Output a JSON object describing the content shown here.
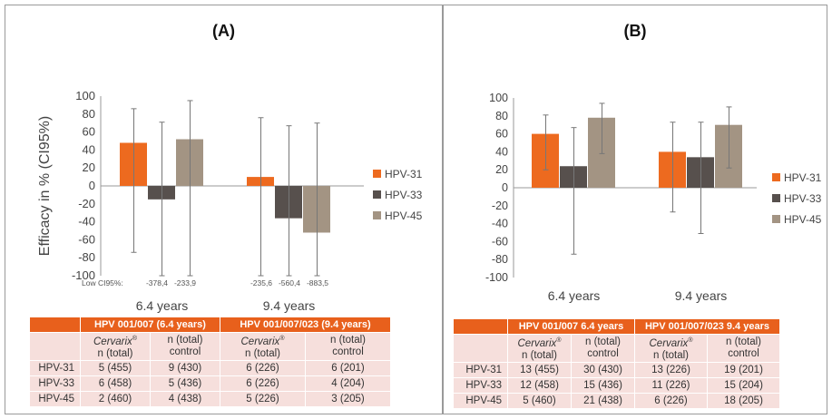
{
  "colors": {
    "hpv31": "#ed6a1f",
    "hpv33": "#57504d",
    "hpv45": "#a39483",
    "header": "#e8601c",
    "cell": "#f6dfdc"
  },
  "panels": [
    {
      "title": "(A)",
      "ylabel": "Efficacy in % (CI95%)",
      "low_ci_label": "Low CI95%:",
      "low_ci_values": [
        "-378,4",
        "-233,9",
        "-235,6",
        "-560,4",
        "-883,5"
      ],
      "table": {
        "group_headers": [
          "HPV 001/007 (6.4 years)",
          "HPV 001/007/023 (9.4 years)"
        ],
        "sub_headers": [
          {
            "main": "Cervarix",
            "sup": "®",
            "second": "n (total)"
          },
          {
            "main": "n (total)",
            "sup": "",
            "second": "control"
          },
          {
            "main": "Cervarix",
            "sup": "®",
            "second": "n (total)"
          },
          {
            "main": "n (total)",
            "sup": "",
            "second": "control"
          }
        ],
        "rows": [
          {
            "label": "HPV-31",
            "cells": [
              "5 (455)",
              "9 (430)",
              "6 (226)",
              "6 (201)"
            ]
          },
          {
            "label": "HPV-33",
            "cells": [
              "6 (458)",
              "5 (436)",
              "6 (226)",
              "4 (204)"
            ]
          },
          {
            "label": "HPV-45",
            "cells": [
              "2 (460)",
              "4 (438)",
              "5 (226)",
              "3 (205)"
            ]
          }
        ]
      }
    },
    {
      "title": "(B)",
      "table": {
        "group_headers": [
          "HPV 001/007 6.4 years",
          "HPV 001/007/023 9.4 years"
        ],
        "sub_headers": [
          {
            "main": "Cervarix",
            "sup": "®",
            "second": "n (total)"
          },
          {
            "main": "n (total)",
            "sup": "",
            "second": "control"
          },
          {
            "main": "Cervarix",
            "sup": "®",
            "second": "n (total)"
          },
          {
            "main": "n (total)",
            "sup": "",
            "second": "control"
          }
        ],
        "rows": [
          {
            "label": "HPV-31",
            "cells": [
              "13 (455)",
              "30 (430)",
              "13 (226)",
              "19 (201)"
            ]
          },
          {
            "label": "HPV-33",
            "cells": [
              "12 (458)",
              "15 (436)",
              "11 (226)",
              "15 (204)"
            ]
          },
          {
            "label": "HPV-45",
            "cells": [
              "5 (460)",
              "21 (438)",
              "6 (226)",
              "18 (205)"
            ]
          }
        ]
      }
    }
  ],
  "chart_data": [
    {
      "type": "bar",
      "title": "(A)",
      "ylabel": "Efficacy in % (CI95%)",
      "ylim": [
        -100,
        100
      ],
      "yticks": [
        -100,
        -80,
        -60,
        -40,
        -20,
        0,
        20,
        40,
        60,
        80,
        100
      ],
      "categories": [
        "6.4 years",
        "9.4 years"
      ],
      "legend_position": "right",
      "series": [
        {
          "name": "HPV-31",
          "values": [
            48,
            10
          ],
          "ci_low": [
            -74,
            -100
          ],
          "ci_high": [
            86,
            76
          ]
        },
        {
          "name": "HPV-33",
          "values": [
            -15,
            -36
          ],
          "ci_low": [
            -100,
            -100
          ],
          "ci_high": [
            71,
            67
          ]
        },
        {
          "name": "HPV-45",
          "values": [
            52,
            -52
          ],
          "ci_low": [
            -100,
            -100
          ],
          "ci_high": [
            95,
            70
          ]
        }
      ]
    },
    {
      "type": "bar",
      "title": "(B)",
      "ylabel": "",
      "ylim": [
        -100,
        100
      ],
      "yticks": [
        -100,
        -80,
        -60,
        -40,
        -20,
        0,
        20,
        40,
        60,
        80,
        100
      ],
      "categories": [
        "6.4 years",
        "9.4 years"
      ],
      "legend_position": "right",
      "series": [
        {
          "name": "HPV-31",
          "values": [
            60,
            40
          ],
          "ci_low": [
            20,
            -27
          ],
          "ci_high": [
            81,
            73
          ]
        },
        {
          "name": "HPV-33",
          "values": [
            24,
            34
          ],
          "ci_low": [
            -74,
            -51
          ],
          "ci_high": [
            67,
            73
          ]
        },
        {
          "name": "HPV-45",
          "values": [
            78,
            70
          ],
          "ci_low": [
            38,
            22
          ],
          "ci_high": [
            94,
            90
          ]
        }
      ]
    }
  ]
}
